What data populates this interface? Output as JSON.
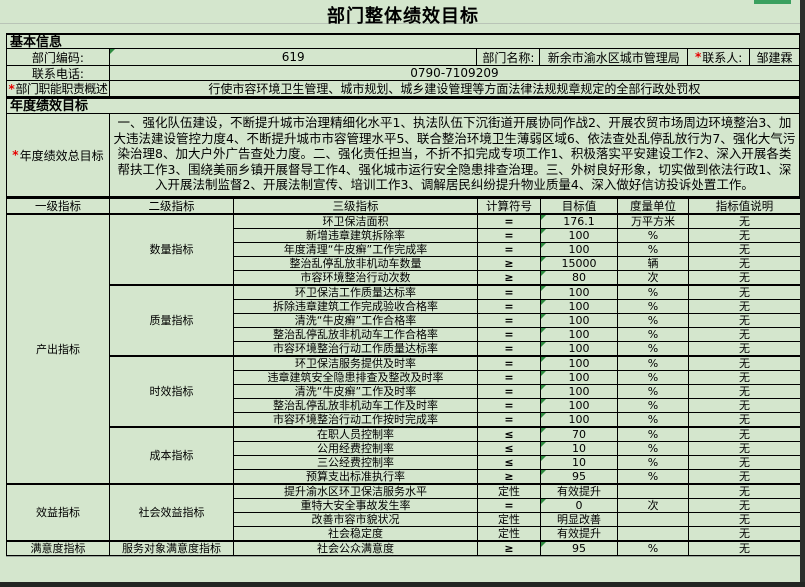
{
  "title": "部门整体绩效目标",
  "basic_info": {
    "header": "基本信息",
    "dept_code": {
      "label": "部门编码:",
      "value": "619"
    },
    "dept_name": {
      "label": "部门名称:",
      "value": "新余市渝水区城市管理局"
    },
    "contact": {
      "required": "*",
      "label": "联系人:",
      "value": "邹建霖"
    },
    "phone": {
      "label": "联系电话:",
      "value": "0790-7109209"
    },
    "duty": {
      "required": "*",
      "label": "部门职能职责概述",
      "value": "行使市容环境卫生管理、城市规划、城乡建设管理等方面法律法规规章规定的全部行政处罚权"
    }
  },
  "annual": {
    "header": "年度绩效目标",
    "overall": {
      "required": "*",
      "label": "年度绩效总目标",
      "value": "一、强化队伍建设，不断提升城市治理精细化水平1、执法队伍下沉街道开展协同作战2、开展农贸市场周边环境整治3、加大违法建设管控力度4、不断提升城市市容管理水平5、联合整治环境卫生薄弱区域6、依法查处乱停乱放行为7、强化大气污染治理8、加大户外广告查处力度。二、强化责任担当，不折不扣完成专项工作1、积极落实平安建设工作2、深入开展各类帮扶工作3、围绕美丽乡镇开展督导工作4、强化城市运行安全隐患排查治理。三、外树良好形象，切实做到依法行政1、深入开展法制监督2、开展法制宣传、培训工作3、调解居民纠纷提升物业质量4、深入做好信访投诉处置工作。"
    }
  },
  "table": {
    "headers": [
      "一级指标",
      "二级指标",
      "三级指标",
      "计算符号",
      "目标值",
      "度量单位",
      "指标值说明"
    ],
    "groups": [
      {
        "level1": "产出指标",
        "subgroups": [
          {
            "level2": "数量指标",
            "rows": [
              {
                "name": "环卫保洁面积",
                "op": "=",
                "target": "176.1",
                "unit": "万平方米",
                "note": "无",
                "marker": true
              },
              {
                "name": "新增违章建筑拆除率",
                "op": "=",
                "target": "100",
                "unit": "%",
                "note": "无",
                "marker": true
              },
              {
                "name": "年度清理“牛皮癣”工作完成率",
                "op": "=",
                "target": "100",
                "unit": "%",
                "note": "无",
                "marker": true
              },
              {
                "name": "整治乱停乱放非机动车数量",
                "op": "≥",
                "target": "15000",
                "unit": "辆",
                "note": "无",
                "marker": true
              },
              {
                "name": "市容环境整治行动次数",
                "op": "≥",
                "target": "80",
                "unit": "次",
                "note": "无",
                "marker": true
              }
            ]
          },
          {
            "level2": "质量指标",
            "rows": [
              {
                "name": "环卫保洁工作质量达标率",
                "op": "=",
                "target": "100",
                "unit": "%",
                "note": "无",
                "marker": true
              },
              {
                "name": "拆除违章建筑工作完成验收合格率",
                "op": "=",
                "target": "100",
                "unit": "%",
                "note": "无",
                "marker": true
              },
              {
                "name": "清洗“牛皮癣”工作合格率",
                "op": "=",
                "target": "100",
                "unit": "%",
                "note": "无",
                "marker": true
              },
              {
                "name": "整治乱停乱放非机动车工作合格率",
                "op": "=",
                "target": "100",
                "unit": "%",
                "note": "无",
                "marker": true
              },
              {
                "name": "市容环境整治行动工作质量达标率",
                "op": "=",
                "target": "100",
                "unit": "%",
                "note": "无",
                "marker": true
              }
            ]
          },
          {
            "level2": "时效指标",
            "rows": [
              {
                "name": "环卫保洁服务提供及时率",
                "op": "=",
                "target": "100",
                "unit": "%",
                "note": "无",
                "marker": true
              },
              {
                "name": "违章建筑安全隐患排查及整改及时率",
                "op": "=",
                "target": "100",
                "unit": "%",
                "note": "无",
                "marker": true
              },
              {
                "name": "清洗“牛皮癣”工作及时率",
                "op": "=",
                "target": "100",
                "unit": "%",
                "note": "无",
                "marker": true
              },
              {
                "name": "整治乱停乱放非机动车工作及时率",
                "op": "=",
                "target": "100",
                "unit": "%",
                "note": "无",
                "marker": true
              },
              {
                "name": "市容环境整治行动工作按时完成率",
                "op": "=",
                "target": "100",
                "unit": "%",
                "note": "无",
                "marker": true
              }
            ]
          },
          {
            "level2": "成本指标",
            "rows": [
              {
                "name": "在职人员控制率",
                "op": "≤",
                "target": "70",
                "unit": "%",
                "note": "无",
                "marker": true
              },
              {
                "name": "公用经费控制率",
                "op": "≤",
                "target": "10",
                "unit": "%",
                "note": "无",
                "marker": true
              },
              {
                "name": "三公经费控制率",
                "op": "≤",
                "target": "10",
                "unit": "%",
                "note": "无",
                "marker": true
              },
              {
                "name": "预算支出标准执行率",
                "op": "≥",
                "target": "95",
                "unit": "%",
                "note": "无",
                "marker": true
              }
            ]
          }
        ]
      },
      {
        "level1": "效益指标",
        "subgroups": [
          {
            "level2": "社会效益指标",
            "rows": [
              {
                "name": "提升渝水区环卫保洁服务水平",
                "op": "定性",
                "target": "有效提升",
                "unit": "",
                "note": "无",
                "marker": false
              },
              {
                "name": "重特大安全事故发生率",
                "op": "=",
                "target": "0",
                "unit": "次",
                "note": "无",
                "marker": true
              },
              {
                "name": "改善市容市貌状况",
                "op": "定性",
                "target": "明显改善",
                "unit": "",
                "note": "无",
                "marker": false
              },
              {
                "name": "社会稳定度",
                "op": "定性",
                "target": "有效提升",
                "unit": "",
                "note": "无",
                "marker": false
              }
            ]
          }
        ]
      },
      {
        "level1": "满意度指标",
        "subgroups": [
          {
            "level2": "服务对象满意度指标",
            "rows": [
              {
                "name": "社会公众满意度",
                "op": "≥",
                "target": "95",
                "unit": "%",
                "note": "无",
                "marker": true
              }
            ]
          }
        ]
      }
    ]
  },
  "colors": {
    "sheet_bg": "#d4e6cd",
    "accent_bar_green": "#3aa05f",
    "comment_marker_green": "#2e8b40",
    "required_red": "#e60000"
  }
}
